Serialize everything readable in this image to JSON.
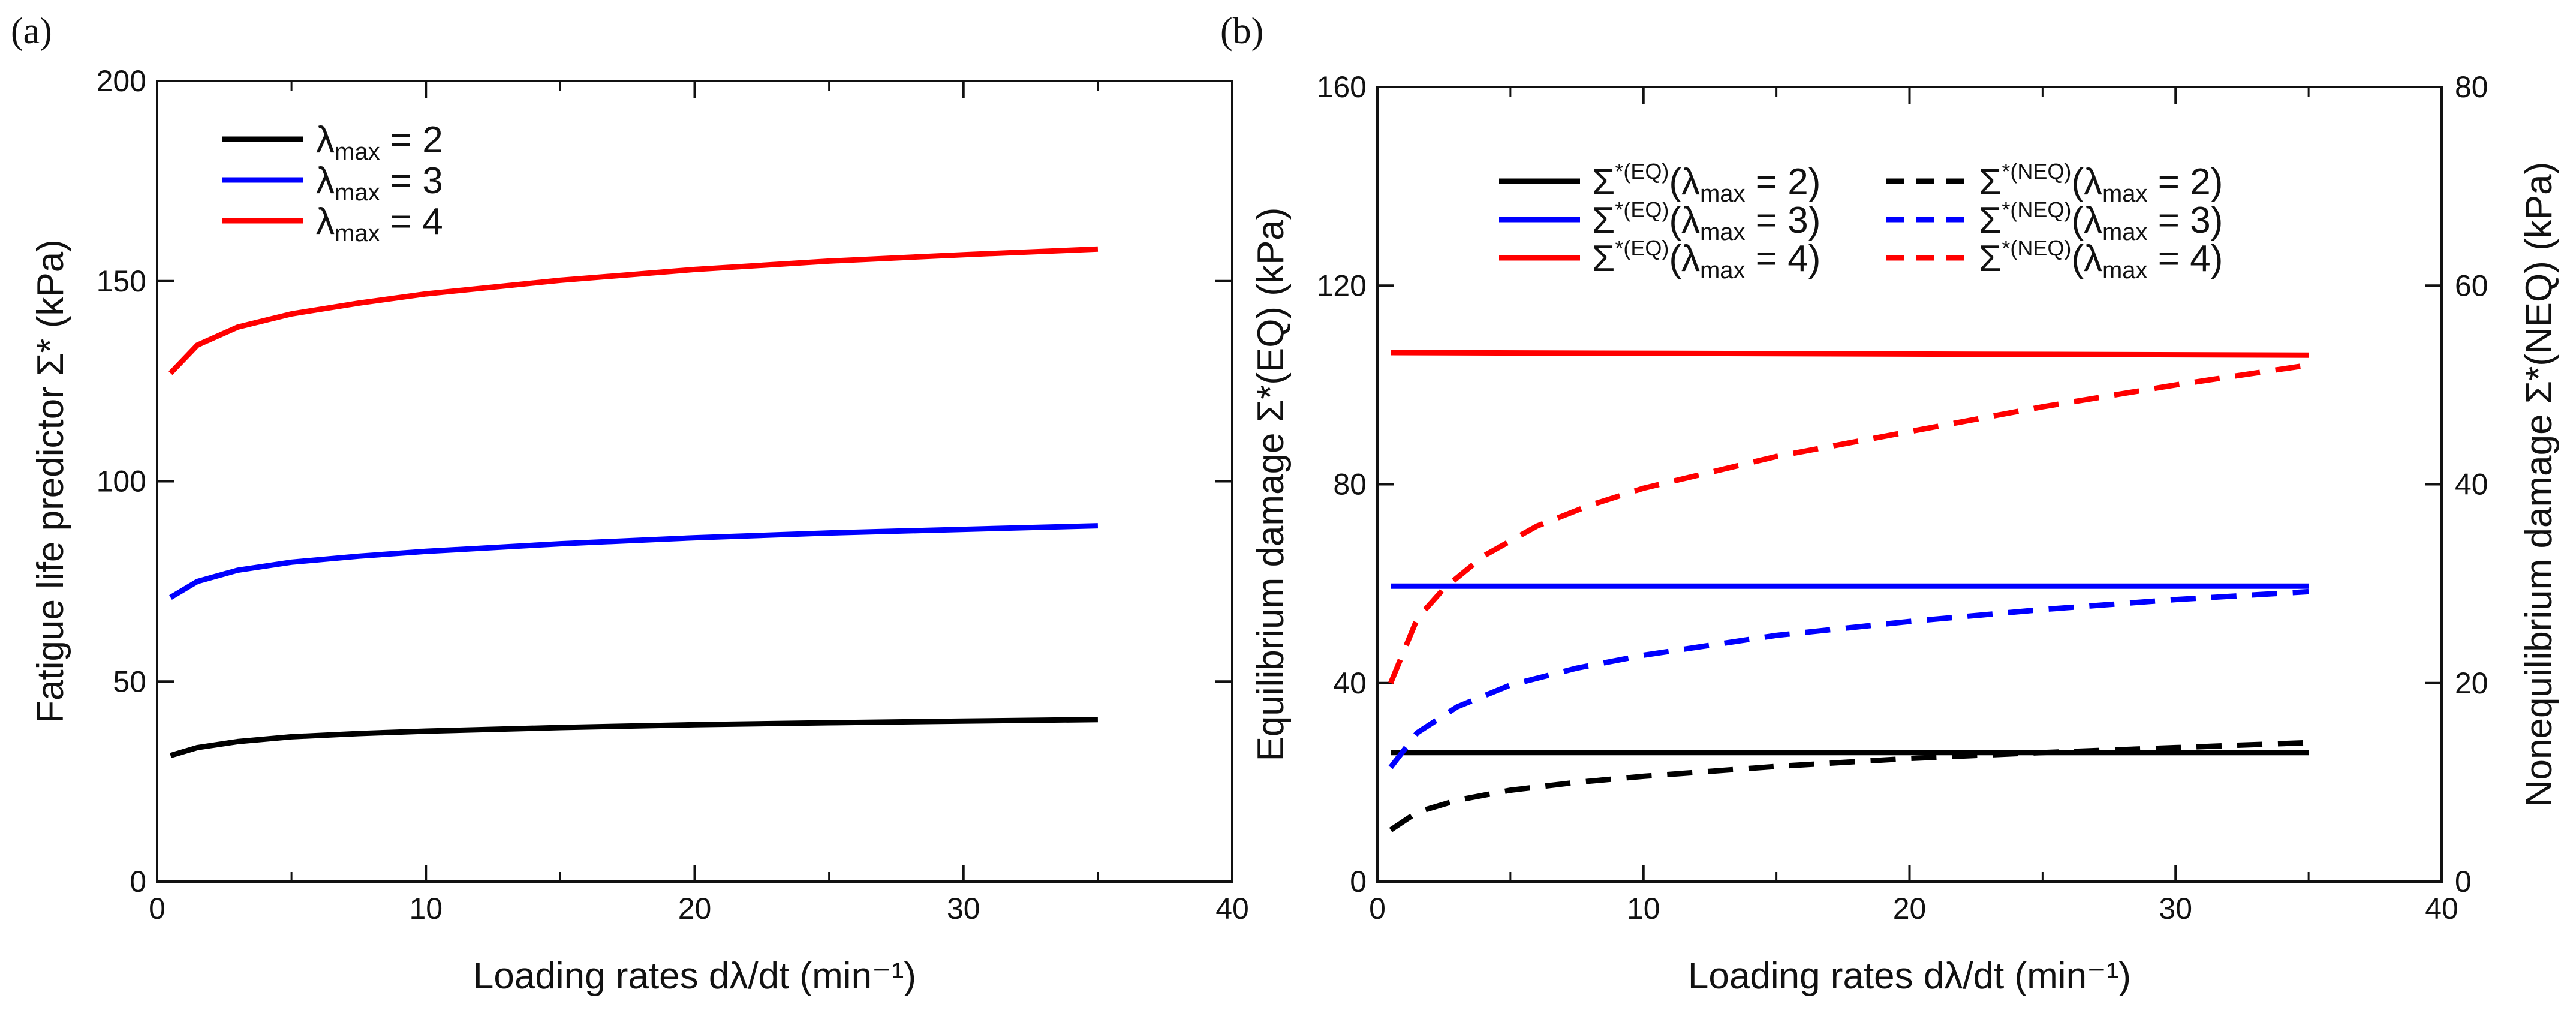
{
  "chart_data": [
    {
      "panel_label": "(a)",
      "type": "line",
      "xlabel": "Loading rates dλ/dt (min⁻¹)",
      "ylabel": "Fatigue life predictor Σ* (kPa)",
      "xlim": [
        0,
        40
      ],
      "ylim": [
        0,
        200
      ],
      "xticks": [
        "0",
        "10",
        "20",
        "30",
        "40"
      ],
      "yticks": [
        "0",
        "50",
        "100",
        "150",
        "200"
      ],
      "legend_position": "top-left",
      "series": [
        {
          "name": "λmax = 2",
          "sub": "max",
          "label_pre": "λ",
          "label_post": " = 2",
          "color": "#000000",
          "dash": "solid",
          "x": [
            0.5,
            1.5,
            3,
            5,
            7.5,
            10,
            15,
            20,
            25,
            30,
            35
          ],
          "y": [
            31.5,
            33.5,
            35.0,
            36.2,
            37.0,
            37.6,
            38.5,
            39.2,
            39.7,
            40.1,
            40.5
          ]
        },
        {
          "name": "λmax = 3",
          "sub": "max",
          "label_pre": "λ",
          "label_post": " = 3",
          "color": "#0000ff",
          "dash": "solid",
          "x": [
            0.5,
            1.5,
            3,
            5,
            7.5,
            10,
            15,
            20,
            25,
            30,
            35
          ],
          "y": [
            71.0,
            75.0,
            77.8,
            79.8,
            81.3,
            82.5,
            84.4,
            85.9,
            87.1,
            88.0,
            88.9
          ]
        },
        {
          "name": "λmax = 4",
          "sub": "max",
          "label_pre": "λ",
          "label_post": " = 4",
          "color": "#ff0000",
          "dash": "solid",
          "x": [
            0.5,
            1.5,
            3,
            5,
            7.5,
            10,
            15,
            20,
            25,
            30,
            35
          ],
          "y": [
            127.0,
            134.0,
            138.5,
            141.8,
            144.5,
            146.8,
            150.2,
            152.9,
            155.0,
            156.6,
            158.0
          ]
        }
      ]
    },
    {
      "panel_label": "(b)",
      "type": "line",
      "xlabel": "Loading rates dλ/dt (min⁻¹)",
      "ylabel": "Equilibrium damage Σ*(EQ) (kPa)",
      "y2label": "Nonequilibrium damage Σ*(NEQ) (kPa)",
      "xlim": [
        0,
        40
      ],
      "ylim": [
        0,
        160
      ],
      "y2lim": [
        0,
        80
      ],
      "xticks": [
        "0",
        "10",
        "20",
        "30",
        "40"
      ],
      "yticks": [
        "0",
        "40",
        "80",
        "120",
        "160"
      ],
      "y2ticks": [
        "0",
        "20",
        "40",
        "60",
        "80"
      ],
      "legend_position": "top-center",
      "series": [
        {
          "name": "Σ*(EQ)(λmax = 2)",
          "sup": "*(EQ)",
          "sub": "max",
          "label_pre": "Σ",
          "label_mid": "(λ",
          "label_post": " = 2)",
          "color": "#000000",
          "dash": "solid",
          "axis": "left",
          "x": [
            0.5,
            35
          ],
          "y": [
            26,
            26
          ]
        },
        {
          "name": "Σ*(NEQ)(λmax = 2)",
          "sup": "*(NEQ)",
          "sub": "max",
          "label_pre": "Σ",
          "label_mid": "(λ",
          "label_post": " = 2)",
          "color": "#000000",
          "dash": "dashed",
          "axis": "right",
          "x": [
            0.5,
            1.5,
            3,
            5,
            7.5,
            10,
            15,
            20,
            25,
            30,
            35
          ],
          "y": [
            5.2,
            7.0,
            8.2,
            9.2,
            10.0,
            10.6,
            11.6,
            12.4,
            13.0,
            13.5,
            14.0
          ]
        },
        {
          "name": "Σ*(EQ)(λmax = 3)",
          "sup": "*(EQ)",
          "sub": "max",
          "label_pre": "Σ",
          "label_mid": "(λ",
          "label_post": " = 3)",
          "color": "#0000ff",
          "dash": "solid",
          "axis": "left",
          "x": [
            0.5,
            35
          ],
          "y": [
            59.5,
            59.5
          ]
        },
        {
          "name": "Σ*(NEQ)(λmax = 3)",
          "sup": "*(NEQ)",
          "sub": "max",
          "label_pre": "Σ",
          "label_mid": "(λ",
          "label_post": " = 3)",
          "color": "#0000ff",
          "dash": "dashed",
          "axis": "right",
          "x": [
            0.5,
            1.5,
            3,
            5,
            7.5,
            10,
            15,
            20,
            25,
            30,
            35
          ],
          "y": [
            11.5,
            15.0,
            17.6,
            19.8,
            21.5,
            22.8,
            24.8,
            26.2,
            27.4,
            28.4,
            29.2
          ]
        },
        {
          "name": "Σ*(EQ)(λmax = 4)",
          "sup": "*(EQ)",
          "sub": "max",
          "label_pre": "Σ",
          "label_mid": "(λ",
          "label_post": " = 4)",
          "color": "#ff0000",
          "dash": "solid",
          "axis": "left",
          "x": [
            0.5,
            35
          ],
          "y": [
            106.5,
            106.0
          ]
        },
        {
          "name": "Σ*(NEQ)(λmax = 4)",
          "sup": "*(NEQ)",
          "sub": "max",
          "label_pre": "Σ",
          "label_mid": "(λ",
          "label_post": " = 4)",
          "color": "#ff0000",
          "dash": "dashed",
          "axis": "right",
          "x": [
            0.5,
            1.5,
            2.5,
            4,
            6,
            8,
            10,
            15,
            20,
            25,
            30,
            35
          ],
          "y": [
            20.0,
            26.5,
            29.5,
            32.8,
            35.8,
            37.9,
            39.6,
            42.8,
            45.3,
            47.8,
            50.0,
            52.0
          ]
        }
      ]
    }
  ]
}
